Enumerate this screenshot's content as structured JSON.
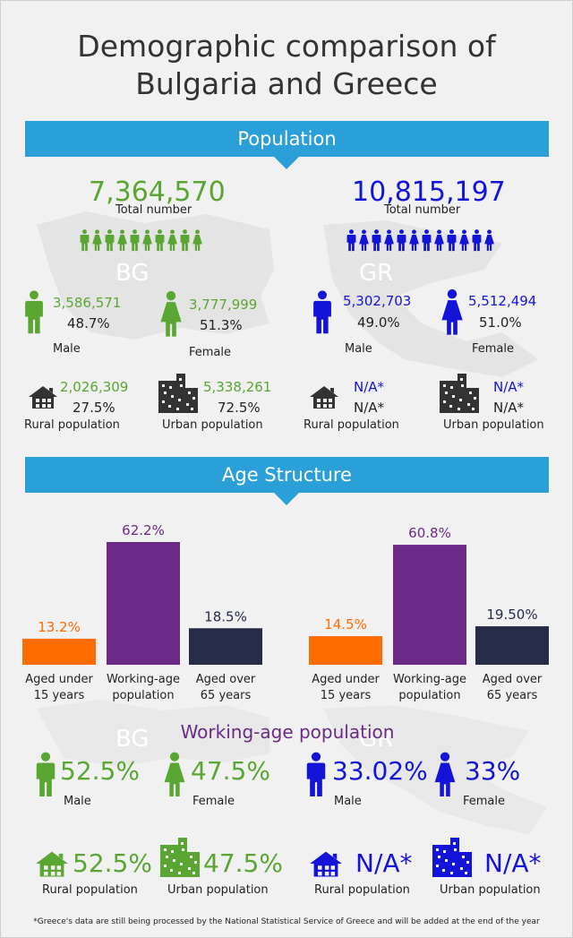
{
  "title_line1": "Demographic comparison of",
  "title_line2": "Bulgaria and Greece",
  "sections": {
    "population": "Population",
    "age_structure": "Age Structure"
  },
  "colors": {
    "bg_green": "#5aa632",
    "gr_blue": "#1414d9",
    "working": "#6a2a86",
    "under15": "#ff6c00",
    "over65": "#262b48",
    "banner": "#2a9fd8"
  },
  "bulgaria": {
    "code": "BG",
    "total": "7,364,570",
    "total_label": "Total number",
    "male_count": "3,586,571",
    "male_pct": "48.7%",
    "male_label": "Male",
    "female_count": "3,777,999",
    "female_pct": "51.3%",
    "female_label": "Female",
    "rural_count": "2,026,309",
    "rural_pct": "27.5%",
    "rural_label": "Rural population",
    "urban_count": "5,338,261",
    "urban_pct": "72.5%",
    "urban_label": "Urban population"
  },
  "greece": {
    "code": "GR",
    "total": "10,815,197",
    "total_label": "Total number",
    "male_count": "5,302,703",
    "male_pct": "49.0%",
    "male_label": "Male",
    "female_count": "5,512,494",
    "female_pct": "51.0%",
    "female_label": "Female",
    "rural_count": "N/A*",
    "rural_pct": "N/A*",
    "rural_label": "Rural population",
    "urban_count": "N/A*",
    "urban_pct": "N/A*",
    "urban_label": "Urban population"
  },
  "chart_data": [
    {
      "type": "bar",
      "categories": [
        "Aged under 15 years",
        "Working-age population",
        "Aged over 65 years"
      ],
      "category_lines": [
        [
          "Aged under",
          "15 years"
        ],
        [
          "Working-age",
          "population"
        ],
        [
          "Aged over",
          "65 years"
        ]
      ],
      "values": [
        13.2,
        62.2,
        18.5
      ],
      "labels": [
        "13.2%",
        "62.2%",
        "18.5%"
      ],
      "colors": [
        "#ff6c00",
        "#6a2a86",
        "#262b48"
      ],
      "ylim": [
        0,
        62.2
      ]
    },
    {
      "type": "bar",
      "categories": [
        "Aged under 15 years",
        "Working-age population",
        "Aged over 65 years"
      ],
      "category_lines": [
        [
          "Aged under",
          "15 years"
        ],
        [
          "Working-age",
          "population"
        ],
        [
          "Aged over",
          "65 years"
        ]
      ],
      "values": [
        14.5,
        60.8,
        19.5
      ],
      "labels": [
        "14.5%",
        "60.8%",
        "19.50%"
      ],
      "colors": [
        "#ff6c00",
        "#6a2a86",
        "#262b48"
      ],
      "ylim": [
        0,
        62.2
      ]
    }
  ],
  "working_age": {
    "title": "Working-age population",
    "bg_male": "52.5%",
    "bg_female": "47.5%",
    "bg_rural": "52.5%",
    "bg_urban": "47.5%",
    "gr_male": "33.02%",
    "gr_female": "33%",
    "gr_rural": "N/A*",
    "gr_urban": "N/A*",
    "male_label": "Male",
    "female_label": "Female",
    "rural_label": "Rural population",
    "urban_label": "Urban population"
  },
  "footnote": "*Greece's data are still being processed by the National Statistical Service of Greece and will be added at the end of the year"
}
